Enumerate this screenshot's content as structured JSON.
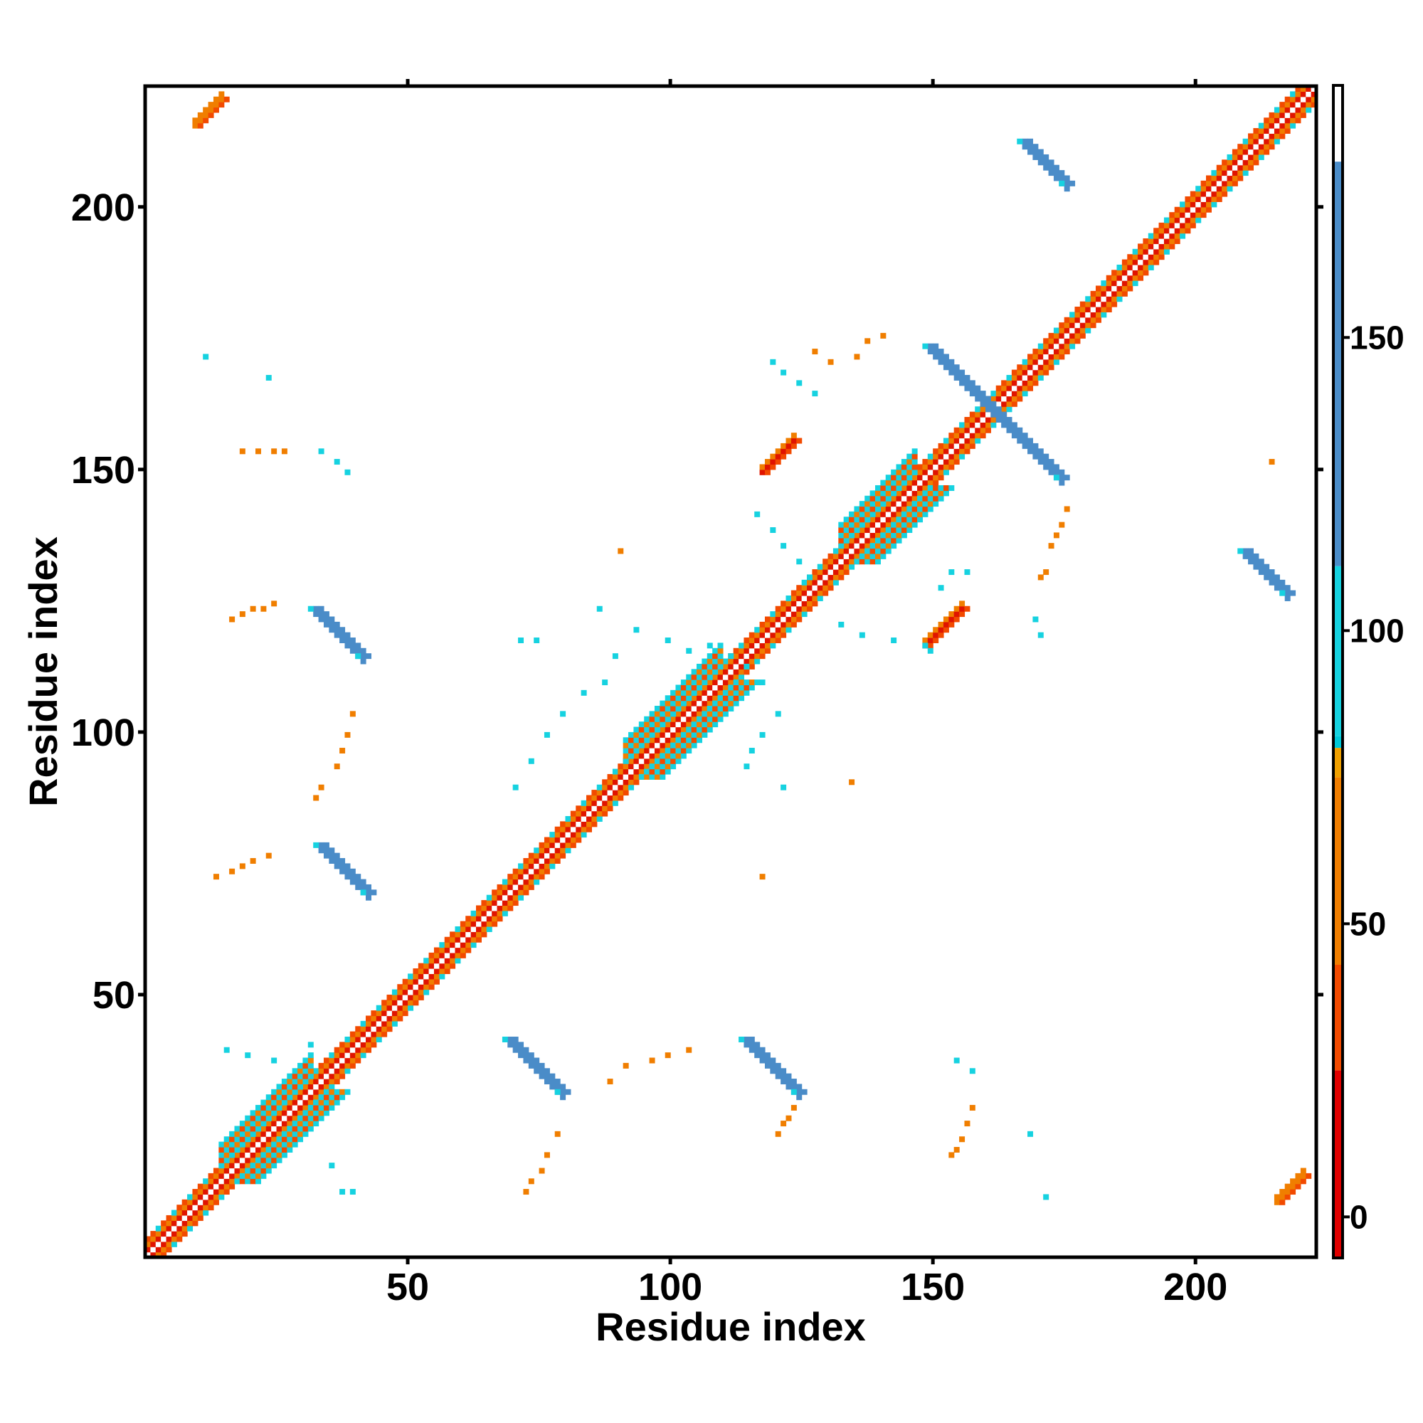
{
  "chart_data": {
    "type": "heatmap",
    "title": "",
    "xlabel": "Residue index",
    "ylabel": "Residue index",
    "xlim": [
      0,
      223
    ],
    "ylim": [
      0,
      223
    ],
    "x_ticks": [
      50,
      100,
      150,
      200
    ],
    "y_ticks": [
      50,
      100,
      150,
      200
    ],
    "colorbar": {
      "ticks": [
        0,
        50,
        100,
        150
      ],
      "range": [
        -7,
        193
      ],
      "bands": [
        {
          "from": -7,
          "to": 25,
          "color": "#e00000"
        },
        {
          "from": 25,
          "to": 43,
          "color": "#f24a00"
        },
        {
          "from": 43,
          "to": 75,
          "color": "#f07e00"
        },
        {
          "from": 75,
          "to": 80,
          "color": "#f0a000"
        },
        {
          "from": 80,
          "to": 82,
          "color": "#00c8d8"
        },
        {
          "from": 82,
          "to": 111,
          "color": "#16d2e0"
        },
        {
          "from": 111,
          "to": 180,
          "color": "#4a8cc8"
        },
        {
          "from": 180,
          "to": 193,
          "color": "#ffffff"
        }
      ]
    },
    "colors": {
      "red": "#e01400",
      "red_orange": "#f24a00",
      "orange": "#f07e00",
      "cyan": "#16d2e0",
      "steel_blue": "#4a8cc8",
      "background": "#ffffff"
    },
    "regions": [
      {
        "shape": "diag",
        "x0": 1,
        "x1": 223,
        "color": "red"
      },
      {
        "shape": "band",
        "x0": 15,
        "x1": 32,
        "offset": 3,
        "color": "cyan"
      },
      {
        "shape": "band",
        "x0": 92,
        "x1": 110,
        "offset": 3,
        "color": "cyan"
      },
      {
        "shape": "band",
        "x0": 133,
        "x1": 147,
        "offset": 3,
        "color": "cyan"
      },
      {
        "shape": "anti",
        "x0": 150,
        "x1": 175,
        "ysum": 324,
        "color": "steel_blue"
      },
      {
        "shape": "anti",
        "x0": 168,
        "x1": 176,
        "ysum": 381,
        "color": "steel_blue"
      },
      {
        "shape": "anti",
        "x0": 210,
        "x1": 218,
        "ysum": 345,
        "color": "steel_blue"
      },
      {
        "shape": "anti",
        "x0": 70,
        "x1": 80,
        "ysum": 112,
        "color": "steel_blue"
      },
      {
        "shape": "anti",
        "x0": 115,
        "x1": 125,
        "ysum": 157,
        "color": "steel_blue"
      },
      {
        "shape": "anti",
        "x0": 33,
        "x1": 42,
        "ysum": 157,
        "color": "steel_blue"
      },
      {
        "shape": "anti",
        "x0": 34,
        "x1": 43,
        "ysum": 113,
        "color": "steel_blue"
      },
      {
        "shape": "par",
        "x0": 118,
        "x1": 124,
        "offset": 32,
        "color": "red"
      },
      {
        "shape": "par",
        "x0": 149,
        "x1": 156,
        "offset": -32,
        "color": "red"
      },
      {
        "shape": "par",
        "x0": 10,
        "x1": 15,
        "offset": 206,
        "color": "orange"
      },
      {
        "shape": "par",
        "x0": 216,
        "x1": 221,
        "offset": -205,
        "color": "orange"
      },
      {
        "shape": "scatter",
        "color": "orange",
        "points": [
          [
            19,
            154
          ],
          [
            22,
            154
          ],
          [
            25,
            154
          ],
          [
            27,
            154
          ],
          [
            17,
            122
          ],
          [
            19,
            123
          ],
          [
            21,
            124
          ],
          [
            23,
            124
          ],
          [
            25,
            125
          ],
          [
            14,
            73
          ],
          [
            17,
            74
          ],
          [
            19,
            75
          ],
          [
            21,
            76
          ],
          [
            24,
            77
          ],
          [
            33,
            88
          ],
          [
            34,
            90
          ],
          [
            37,
            94
          ],
          [
            38,
            97
          ],
          [
            39,
            100
          ],
          [
            40,
            104
          ],
          [
            73,
            13
          ],
          [
            74,
            15
          ],
          [
            76,
            17
          ],
          [
            77,
            20
          ],
          [
            79,
            24
          ],
          [
            89,
            34
          ],
          [
            92,
            37
          ],
          [
            97,
            38
          ],
          [
            100,
            39
          ],
          [
            104,
            40
          ],
          [
            121,
            24
          ],
          [
            122,
            26
          ],
          [
            123,
            27
          ],
          [
            124,
            29
          ],
          [
            154,
            20
          ],
          [
            155,
            21
          ],
          [
            156,
            23
          ],
          [
            157,
            26
          ],
          [
            158,
            29
          ],
          [
            171,
            130
          ],
          [
            172,
            131
          ],
          [
            173,
            136
          ],
          [
            174,
            138
          ],
          [
            175,
            140
          ],
          [
            176,
            143
          ],
          [
            128,
            173
          ],
          [
            131,
            171
          ],
          [
            136,
            172
          ],
          [
            138,
            175
          ],
          [
            141,
            176
          ],
          [
            215,
            152
          ],
          [
            91,
            135
          ],
          [
            135,
            91
          ],
          [
            118,
            73
          ]
        ]
      },
      {
        "shape": "scatter",
        "color": "cyan",
        "points": [
          [
            12,
            172
          ],
          [
            24,
            168
          ],
          [
            34,
            154
          ],
          [
            37,
            152
          ],
          [
            39,
            150
          ],
          [
            16,
            40
          ],
          [
            20,
            39
          ],
          [
            25,
            38
          ],
          [
            32,
            41
          ],
          [
            38,
            13
          ],
          [
            40,
            13
          ],
          [
            36,
            18
          ],
          [
            71,
            90
          ],
          [
            74,
            95
          ],
          [
            77,
            100
          ],
          [
            80,
            104
          ],
          [
            84,
            108
          ],
          [
            88,
            110
          ],
          [
            90,
            115
          ],
          [
            72,
            118
          ],
          [
            75,
            118
          ],
          [
            87,
            124
          ],
          [
            94,
            120
          ],
          [
            100,
            118
          ],
          [
            104,
            116
          ],
          [
            108,
            117
          ],
          [
            112,
            115
          ],
          [
            115,
            113
          ],
          [
            118,
            110
          ],
          [
            121,
            104
          ],
          [
            118,
            100
          ],
          [
            116,
            97
          ],
          [
            115,
            94
          ],
          [
            122,
            90
          ],
          [
            133,
            121
          ],
          [
            137,
            119
          ],
          [
            143,
            118
          ],
          [
            149,
            117
          ],
          [
            150,
            116
          ],
          [
            152,
            128
          ],
          [
            154,
            131
          ],
          [
            157,
            131
          ],
          [
            155,
            38
          ],
          [
            158,
            36
          ],
          [
            169,
            24
          ],
          [
            172,
            12
          ],
          [
            170,
            122
          ],
          [
            171,
            119
          ],
          [
            120,
            171
          ],
          [
            122,
            169
          ],
          [
            125,
            167
          ],
          [
            128,
            165
          ],
          [
            117,
            142
          ],
          [
            120,
            139
          ],
          [
            122,
            136
          ],
          [
            125,
            133
          ],
          [
            127,
            130
          ]
        ]
      }
    ]
  }
}
